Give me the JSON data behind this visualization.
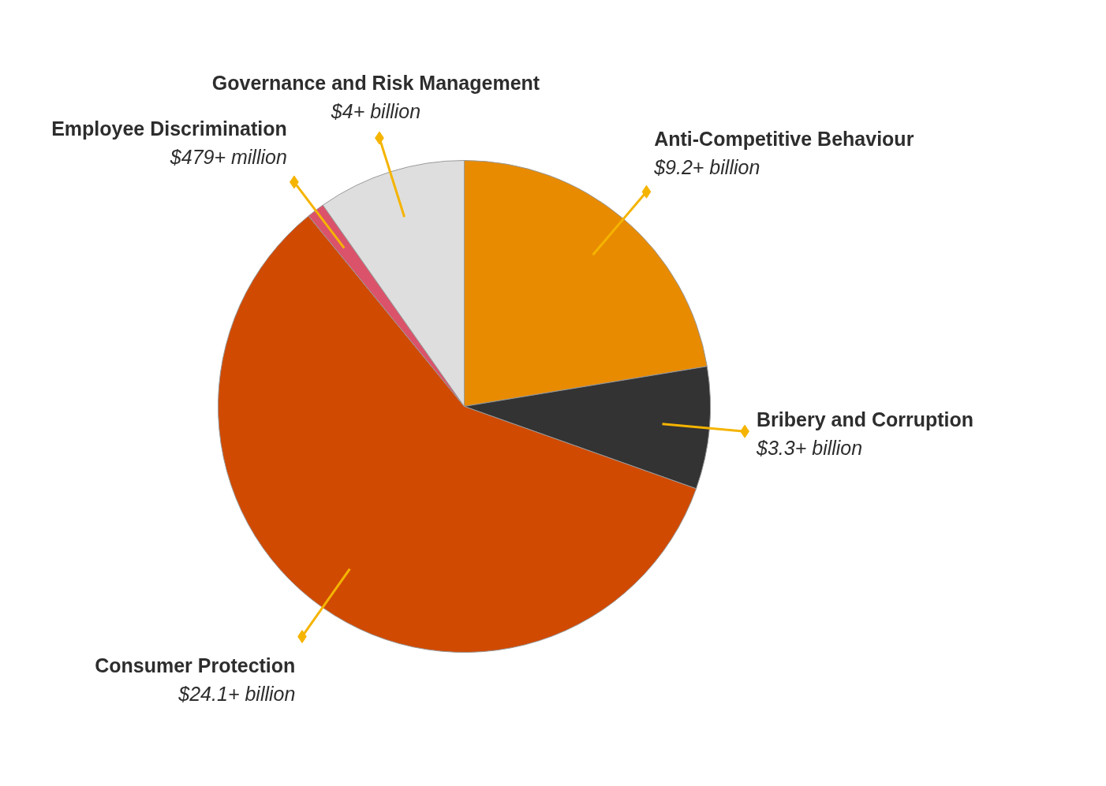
{
  "chart_data": {
    "type": "pie",
    "categories": [
      "Anti-Competitive Behaviour",
      "Bribery and Corruption",
      "Consumer Protection",
      "Employee Discrimination",
      "Governance and Risk Management"
    ],
    "values": [
      9.2,
      3.3,
      24.1,
      0.479,
      4
    ],
    "value_labels": [
      "$9.2+ billion",
      "$3.3+ billion",
      "$24.1+ billion",
      "$479+ million",
      "$4+ billion"
    ],
    "colors": [
      "#e88b00",
      "#333333",
      "#d04a02",
      "#db536a",
      "#dedede"
    ]
  }
}
